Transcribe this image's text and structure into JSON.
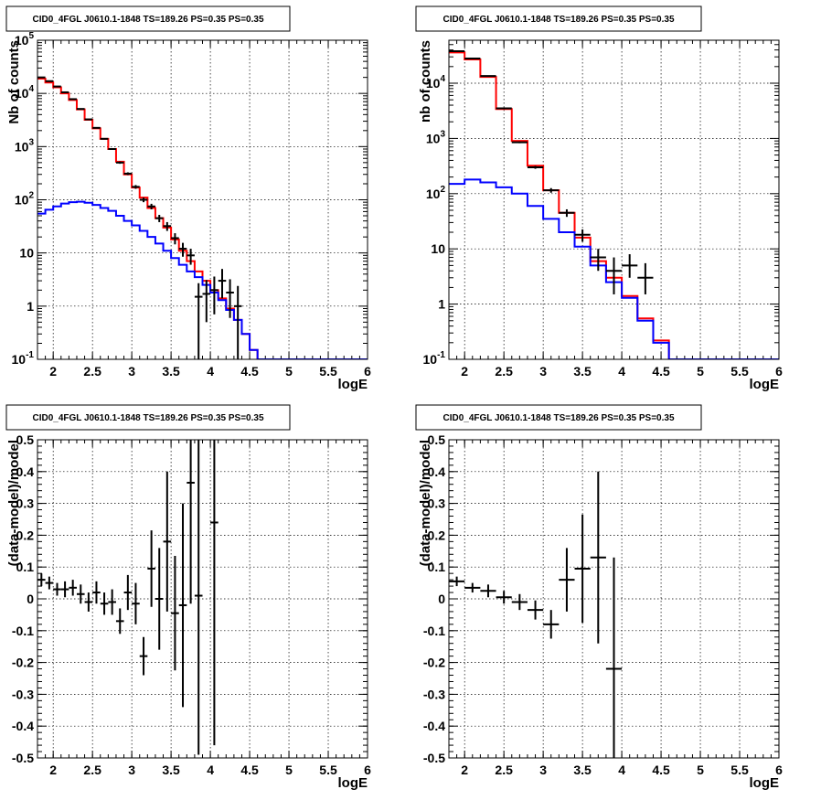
{
  "chart_data": [
    {
      "type": "line",
      "title": "CID0_4FGL J0610.1-1848 TS=189.26 PS=0.35 PS=0.35",
      "xlabel": "logE",
      "ylabel": "Nb of counts",
      "yscale": "log",
      "xlim": [
        1.8,
        6
      ],
      "ylim": [
        0.1,
        100000
      ],
      "x_ticks": [
        "2",
        "2.5",
        "3",
        "3.5",
        "4",
        "4.5",
        "5",
        "5.5",
        "6"
      ],
      "y_ticks": [
        "10^-1",
        "1",
        "10",
        "10^2",
        "10^3",
        "10^4",
        "10^5"
      ],
      "grid": true,
      "bin_edges": [
        1.8,
        1.9,
        2.0,
        2.1,
        2.2,
        2.3,
        2.4,
        2.5,
        2.6,
        2.7,
        2.8,
        2.9,
        3.0,
        3.1,
        3.2,
        3.3,
        3.4,
        3.5,
        3.6,
        3.7,
        3.8,
        3.9,
        4.0,
        4.1,
        4.2,
        4.3,
        4.4,
        4.5,
        4.6,
        4.7,
        4.8,
        4.9,
        5.0,
        5.1,
        5.2,
        5.3,
        5.4,
        5.5,
        5.6,
        5.7,
        5.8,
        5.9,
        6.0
      ],
      "series": [
        {
          "color": "#ff0000",
          "style": "histogram",
          "values": [
            19000,
            16000,
            13000,
            10000,
            7500,
            5000,
            3200,
            2200,
            1400,
            900,
            520,
            300,
            170,
            110,
            70,
            45,
            30,
            18,
            11,
            7,
            4.5,
            3,
            2,
            1.4,
            0.9,
            0.55,
            0.3,
            0.15,
            0.1,
            0.1,
            0.1,
            0.1,
            0.1,
            0.1,
            0.1,
            0.1,
            0.1,
            0.1,
            0.1,
            0.1,
            0.1,
            0.1
          ]
        },
        {
          "color": "#0000ff",
          "style": "histogram",
          "values": [
            55,
            65,
            75,
            85,
            90,
            92,
            88,
            80,
            70,
            62,
            50,
            40,
            33,
            26,
            20,
            15,
            11,
            8,
            6,
            4.5,
            3.5,
            2.5,
            1.8,
            1.3,
            0.85,
            0.55,
            0.3,
            0.15,
            0.1,
            0.1,
            0.1,
            0.1,
            0.1,
            0.1,
            0.1,
            0.1,
            0.1,
            0.1,
            0.1,
            0.1,
            0.1,
            0.1
          ]
        },
        {
          "color": "#000000",
          "style": "points",
          "x": [
            1.85,
            1.95,
            2.05,
            2.15,
            2.25,
            2.35,
            2.45,
            2.55,
            2.65,
            2.75,
            2.85,
            2.95,
            3.05,
            3.15,
            3.25,
            3.35,
            3.45,
            3.55,
            3.65,
            3.75,
            3.85,
            3.95,
            4.05,
            4.15,
            4.25,
            4.35
          ],
          "y": [
            20000,
            17000,
            13500,
            10500,
            7800,
            5100,
            3250,
            2250,
            1400,
            900,
            500,
            310,
            175,
            100,
            75,
            45,
            32,
            19,
            12,
            9,
            1.5,
            1.7,
            2,
            3,
            1.8,
            1
          ],
          "err_lo": [
            200,
            180,
            150,
            120,
            100,
            80,
            60,
            50,
            40,
            30,
            25,
            18,
            14,
            10,
            9,
            7,
            6,
            4.5,
            3.5,
            3,
            1.4,
            1.2,
            1.3,
            1.6,
            1.2,
            0.9
          ],
          "err_hi": [
            200,
            180,
            150,
            120,
            100,
            80,
            60,
            50,
            40,
            30,
            25,
            18,
            14,
            10,
            9,
            7,
            6,
            4.5,
            3.5,
            3,
            1.2,
            1.4,
            1.6,
            2,
            1.4,
            1.4
          ]
        }
      ]
    },
    {
      "type": "line",
      "title": "CID0_4FGL J0610.1-1848 TS=189.26 PS=0.35 PS=0.35",
      "xlabel": "logE",
      "ylabel": "nb of counts",
      "yscale": "log",
      "xlim": [
        1.8,
        6
      ],
      "ylim": [
        0.1,
        60000
      ],
      "x_ticks": [
        "2",
        "2.5",
        "3",
        "3.5",
        "4",
        "4.5",
        "5",
        "5.5",
        "6"
      ],
      "y_ticks": [
        "10^-1",
        "1",
        "10",
        "10^2",
        "10^3",
        "10^4"
      ],
      "grid": true,
      "bin_edges": [
        1.8,
        2.0,
        2.2,
        2.4,
        2.6,
        2.8,
        3.0,
        3.2,
        3.4,
        3.6,
        3.8,
        4.0,
        4.2,
        4.4,
        4.6,
        4.8,
        5.0,
        5.2,
        5.4,
        5.6,
        5.8,
        6.0
      ],
      "series": [
        {
          "color": "#ff0000",
          "style": "histogram",
          "values": [
            36000,
            27000,
            13000,
            3400,
            900,
            320,
            115,
            45,
            16,
            6,
            3,
            1.4,
            0.55,
            0.22,
            0.1,
            0.1,
            0.1,
            0.1,
            0.1,
            0.1,
            0.1
          ]
        },
        {
          "color": "#0000ff",
          "style": "histogram",
          "values": [
            150,
            180,
            160,
            130,
            100,
            60,
            35,
            20,
            11,
            5,
            2.5,
            1.3,
            0.5,
            0.2,
            0.1,
            0.1,
            0.1,
            0.1,
            0.1,
            0.1,
            0.1
          ]
        },
        {
          "color": "#000000",
          "style": "points",
          "x": [
            1.9,
            2.1,
            2.3,
            2.5,
            2.7,
            2.9,
            3.1,
            3.3,
            3.5,
            3.7,
            3.9,
            4.1,
            4.3
          ],
          "y": [
            38000,
            28000,
            13500,
            3500,
            850,
            300,
            115,
            45,
            18,
            7,
            4,
            5,
            3
          ],
          "err_lo": [
            200,
            170,
            120,
            60,
            30,
            18,
            11,
            7,
            4.5,
            3,
            2.5,
            2,
            1.5
          ],
          "err_hi": [
            200,
            170,
            120,
            60,
            30,
            18,
            11,
            7,
            4.5,
            3,
            3,
            3,
            2.5
          ]
        }
      ]
    },
    {
      "type": "scatter",
      "title": "CID0_4FGL J0610.1-1848 TS=189.26 PS=0.35 PS=0.35",
      "xlabel": "logE",
      "ylabel": "(data-model)/model",
      "xlim": [
        1.8,
        6
      ],
      "ylim": [
        -0.5,
        0.5
      ],
      "x_ticks": [
        "2",
        "2.5",
        "3",
        "3.5",
        "4",
        "4.5",
        "5",
        "5.5",
        "6"
      ],
      "y_ticks": [
        "-0.5",
        "-0.4",
        "-0.3",
        "-0.2",
        "-0.1",
        "0",
        "0.1",
        "0.2",
        "0.3",
        "0.4",
        "0.5"
      ],
      "grid": true,
      "series": [
        {
          "color": "#000000",
          "style": "points",
          "xerr": 0.05,
          "x": [
            1.85,
            1.95,
            2.05,
            2.15,
            2.25,
            2.35,
            2.45,
            2.55,
            2.65,
            2.75,
            2.85,
            2.95,
            3.05,
            3.15,
            3.25,
            3.35,
            3.45,
            3.55,
            3.65,
            3.75,
            3.85,
            4.05
          ],
          "y": [
            0.06,
            0.05,
            0.03,
            0.03,
            0.035,
            0.015,
            -0.01,
            0.02,
            -0.015,
            -0.01,
            -0.07,
            0.02,
            -0.015,
            -0.18,
            0.095,
            0.0,
            0.18,
            -0.045,
            -0.02,
            0.365,
            0.01,
            0.24
          ],
          "err": [
            0.02,
            0.02,
            0.02,
            0.025,
            0.025,
            0.03,
            0.03,
            0.035,
            0.035,
            0.04,
            0.04,
            0.055,
            0.065,
            0.06,
            0.12,
            0.16,
            0.22,
            0.18,
            0.32,
            0.38,
            0.5,
            0.7
          ]
        }
      ]
    },
    {
      "type": "scatter",
      "title": "CID0_4FGL J0610.1-1848 TS=189.26 PS=0.35 PS=0.35",
      "xlabel": "logE",
      "ylabel": "(data-model)/model",
      "xlim": [
        1.8,
        6
      ],
      "ylim": [
        -0.5,
        0.5
      ],
      "x_ticks": [
        "2",
        "2.5",
        "3",
        "3.5",
        "4",
        "4.5",
        "5",
        "5.5",
        "6"
      ],
      "y_ticks": [
        "-0.5",
        "-0.4",
        "-0.3",
        "-0.2",
        "-0.1",
        "0",
        "0.1",
        "0.2",
        "0.3",
        "0.4",
        "0.5"
      ],
      "grid": true,
      "series": [
        {
          "color": "#000000",
          "style": "points",
          "xerr": 0.1,
          "x": [
            1.9,
            2.1,
            2.3,
            2.5,
            2.7,
            2.9,
            3.1,
            3.3,
            3.5,
            3.7,
            3.9
          ],
          "y": [
            0.055,
            0.035,
            0.025,
            0.005,
            -0.01,
            -0.035,
            -0.08,
            0.06,
            0.095,
            0.13,
            -0.22
          ],
          "err": [
            0.015,
            0.015,
            0.02,
            0.02,
            0.025,
            0.03,
            0.045,
            0.1,
            0.17,
            0.27,
            0.35
          ]
        }
      ]
    }
  ]
}
